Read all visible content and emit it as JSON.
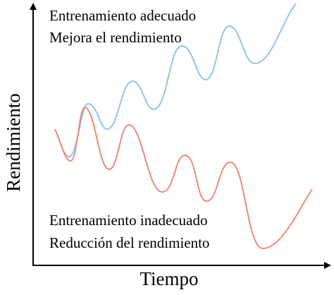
{
  "texts": {
    "top_line1": "Entrenamiento adecuado",
    "top_line2": "Mejora el rendimiento",
    "bottom_line1": "Entrenamiento inadecuado",
    "bottom_line2": "Reducción del rendimiento"
  },
  "axes": {
    "y_label": "Rendimiento",
    "x_label": "Tiempo"
  }
}
